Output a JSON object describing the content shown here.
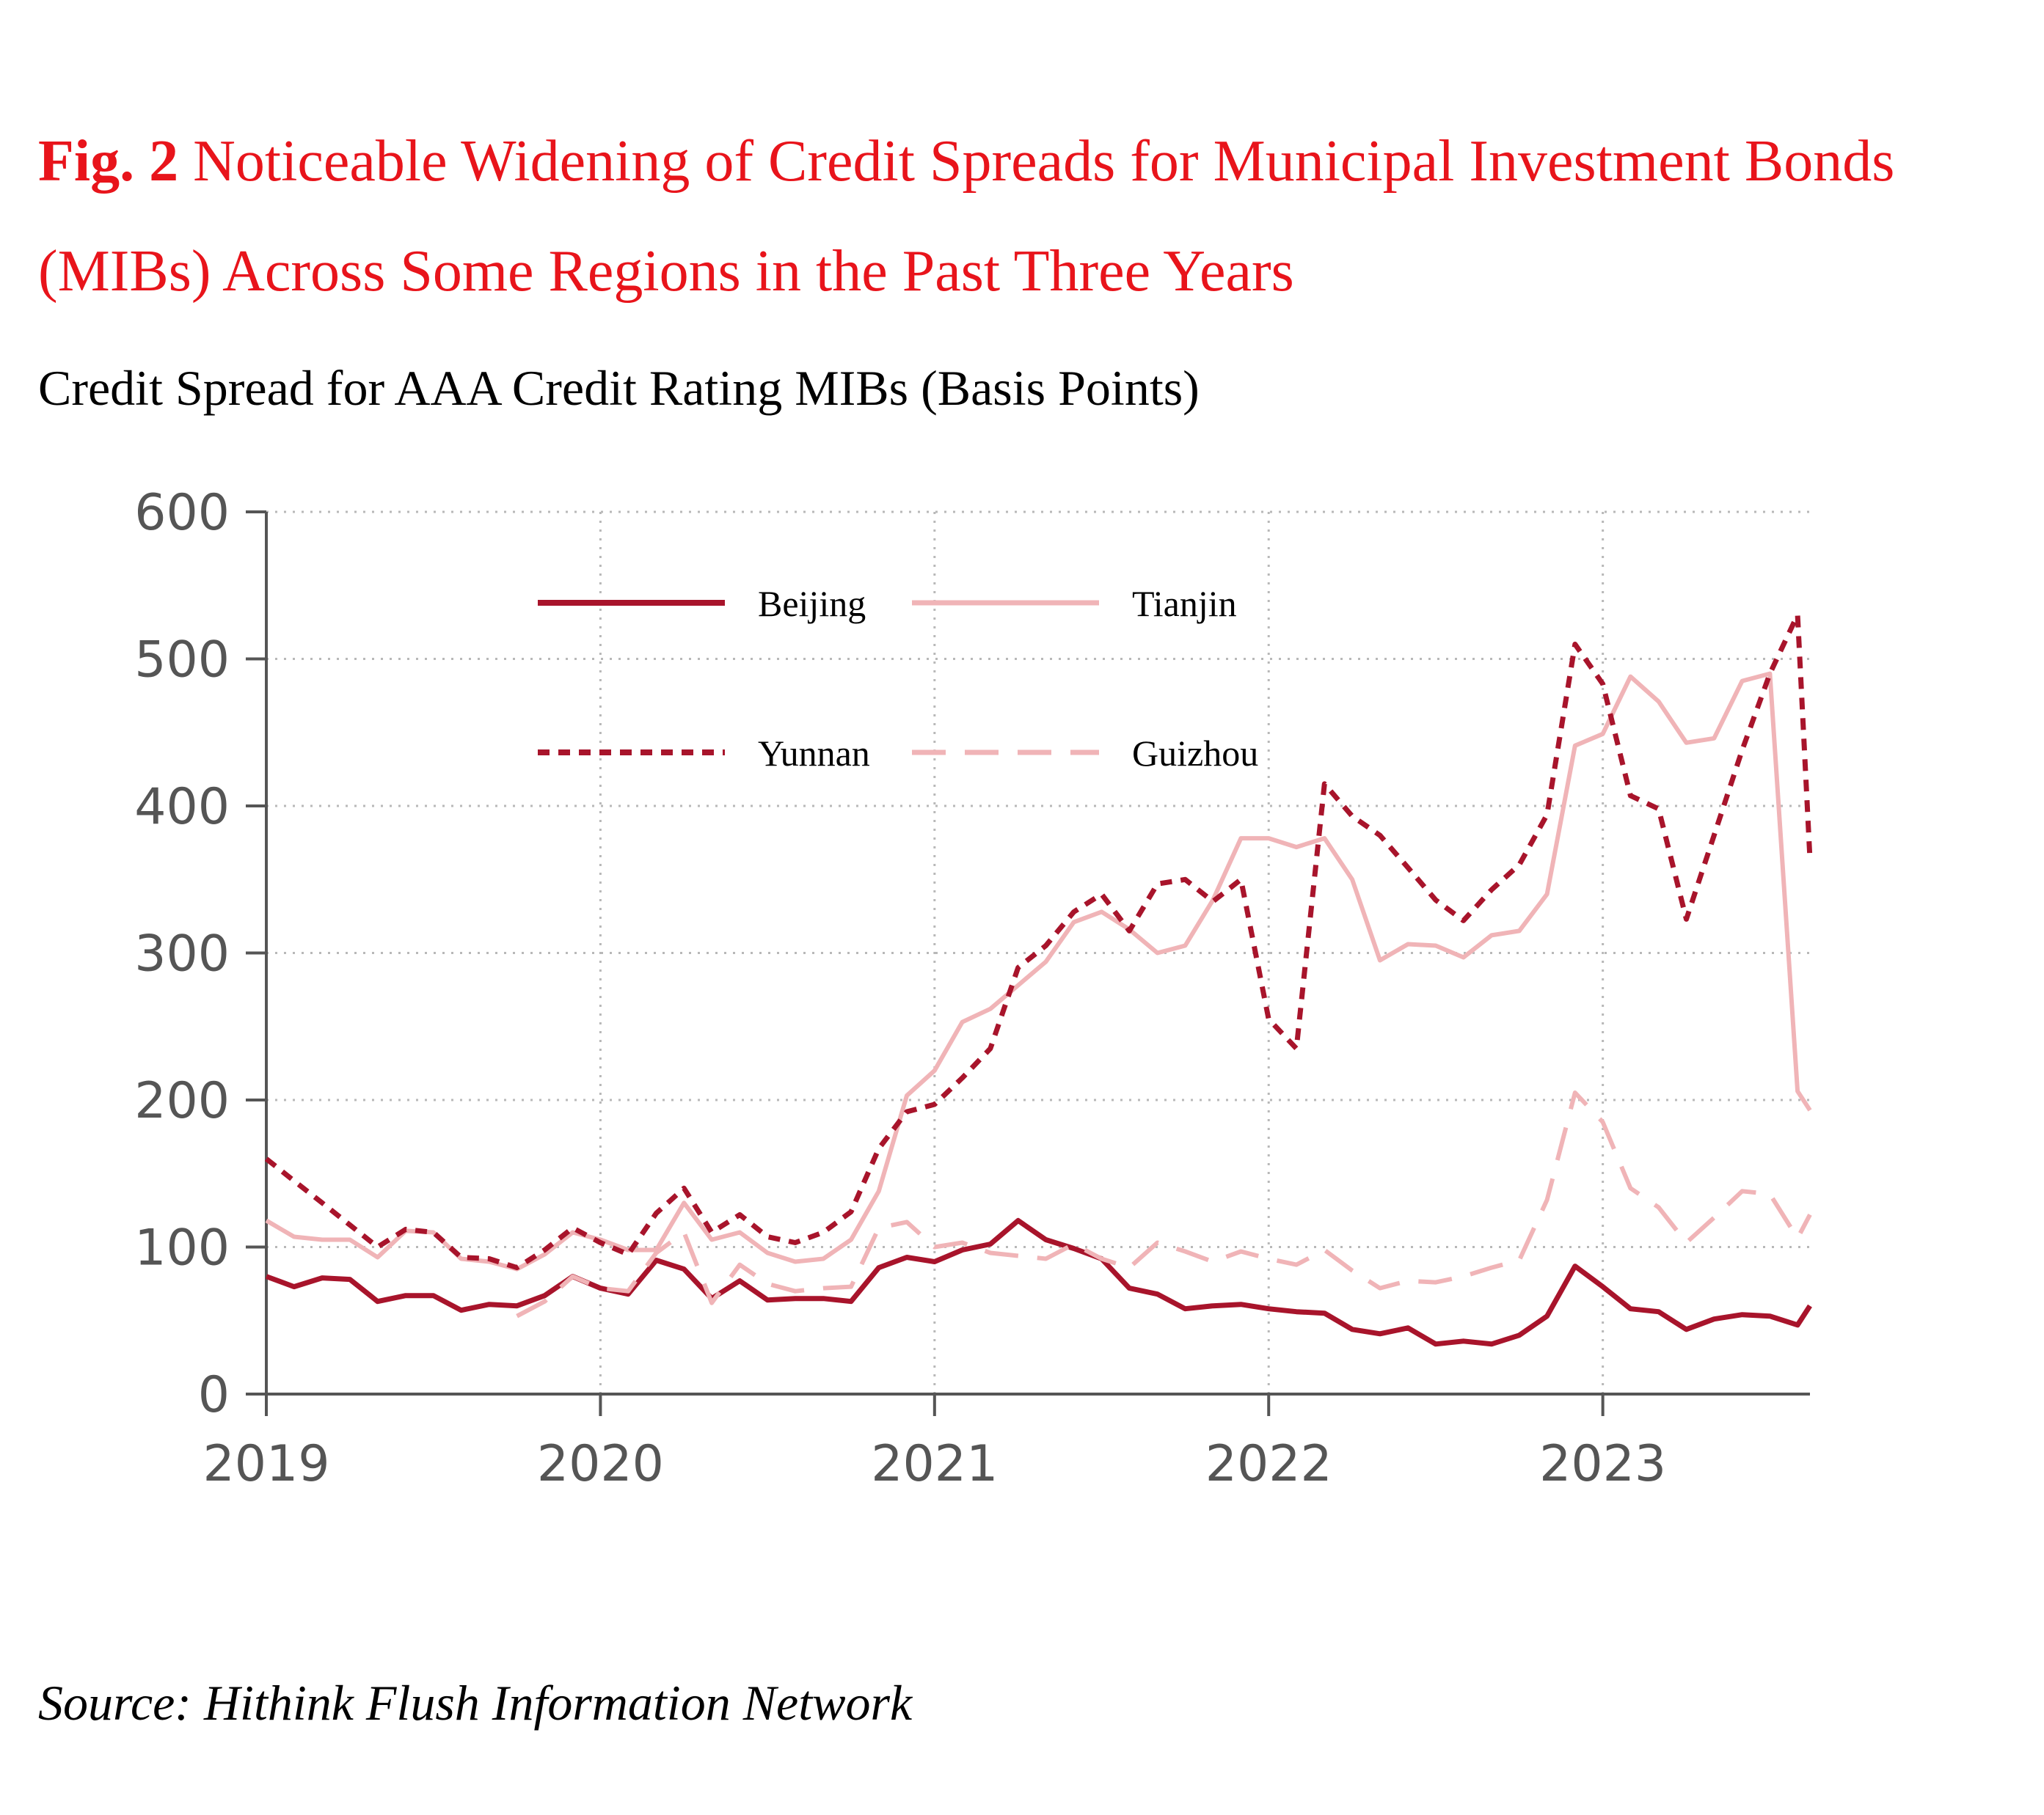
{
  "figure": {
    "label": "Fig. 2",
    "title": "Noticeable Widening of Credit Spreads for Municipal Investment Bonds (MIBs) Across Some Regions in the Past Three Years",
    "subtitle": "Credit Spread for AAA Credit Rating MIBs (Basis Points)",
    "source": "Source: Hithink Flush Information Network"
  },
  "chart_data": {
    "type": "line",
    "title": "Credit Spread for AAA Credit Rating MIBs (Basis Points)",
    "xlabel": "",
    "ylabel": "",
    "x_unit": "year (monthly observations)",
    "xlim": [
      2019.0,
      2023.62
    ],
    "ylim": [
      0,
      600
    ],
    "x_ticks": [
      "2019",
      "2020",
      "2021",
      "2022",
      "2023"
    ],
    "y_ticks": [
      "0",
      "100",
      "200",
      "300",
      "400",
      "500",
      "600"
    ],
    "grid": true,
    "legend_position": "top-center",
    "x": [
      2019.0,
      2019.083,
      2019.167,
      2019.25,
      2019.333,
      2019.417,
      2019.5,
      2019.583,
      2019.667,
      2019.75,
      2019.833,
      2019.917,
      2020.0,
      2020.083,
      2020.167,
      2020.25,
      2020.333,
      2020.417,
      2020.5,
      2020.583,
      2020.667,
      2020.75,
      2020.833,
      2020.917,
      2021.0,
      2021.083,
      2021.167,
      2021.25,
      2021.333,
      2021.417,
      2021.5,
      2021.583,
      2021.667,
      2021.75,
      2021.833,
      2021.917,
      2022.0,
      2022.083,
      2022.167,
      2022.25,
      2022.333,
      2022.417,
      2022.5,
      2022.583,
      2022.667,
      2022.75,
      2022.833,
      2022.917,
      2023.0,
      2023.083,
      2023.167,
      2023.25,
      2023.333,
      2023.417,
      2023.5,
      2023.583,
      2023.62
    ],
    "series": [
      {
        "name": "Beijing",
        "color": "#a8142b",
        "style": "solid",
        "values": [
          80,
          73,
          79,
          78,
          63,
          67,
          67,
          57,
          61,
          60,
          67,
          80,
          72,
          68,
          91,
          85,
          65,
          77,
          64,
          65,
          65,
          63,
          86,
          93,
          90,
          98,
          102,
          118,
          105,
          99,
          92,
          72,
          68,
          58,
          60,
          61,
          58,
          56,
          55,
          44,
          41,
          45,
          34,
          36,
          34,
          40,
          53,
          87,
          73,
          58,
          56,
          44,
          51,
          54,
          53,
          47,
          60
        ]
      },
      {
        "name": "Tianjin",
        "color": "#f0b4b7",
        "style": "solid",
        "values": [
          118,
          107,
          105,
          105,
          93,
          111,
          110,
          92,
          90,
          85,
          95,
          110,
          105,
          98,
          98,
          130,
          105,
          110,
          96,
          90,
          92,
          105,
          138,
          203,
          220,
          253,
          262,
          278,
          294,
          321,
          328,
          316,
          300,
          305,
          336,
          378,
          378,
          372,
          378,
          350,
          295,
          306,
          305,
          297,
          312,
          315,
          340,
          441,
          449,
          488,
          471,
          443,
          446,
          485,
          490,
          206,
          193
        ]
      },
      {
        "name": "Yunnan",
        "color": "#a8142b",
        "style": "dotted",
        "values": [
          160,
          145,
          130,
          115,
          100,
          112,
          110,
          93,
          92,
          86,
          98,
          113,
          103,
          95,
          123,
          140,
          110,
          122,
          107,
          103,
          110,
          124,
          167,
          192,
          197,
          215,
          235,
          290,
          305,
          328,
          340,
          315,
          347,
          350,
          335,
          350,
          255,
          235,
          415,
          393,
          380,
          358,
          336,
          322,
          343,
          360,
          394,
          510,
          483,
          407,
          398,
          323,
          380,
          438,
          490,
          530,
          364
        ]
      },
      {
        "name": "Guizhou",
        "color": "#f0b4b7",
        "style": "dashed",
        "values": [
          null,
          null,
          null,
          null,
          null,
          null,
          null,
          null,
          null,
          53,
          63,
          80,
          72,
          70,
          96,
          110,
          62,
          88,
          75,
          70,
          72,
          73,
          113,
          117,
          100,
          103,
          96,
          94,
          92,
          102,
          92,
          86,
          103,
          97,
          90,
          97,
          92,
          88,
          98,
          84,
          72,
          77,
          76,
          80,
          86,
          91,
          132,
          205,
          185,
          140,
          127,
          103,
          120,
          138,
          136,
          106,
          122
        ]
      }
    ]
  }
}
